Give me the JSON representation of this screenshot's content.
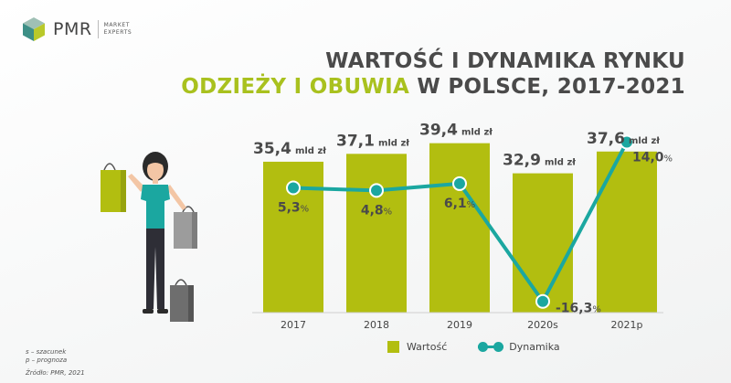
{
  "brand": {
    "name": "PMR",
    "tagline_line1": "MARKET",
    "tagline_line2": "EXPERTS"
  },
  "title": {
    "line1": "WARTOŚĆ I DYNAMIKA RYNKU",
    "line2_highlight": "ODZIEŻY I OBUWIA",
    "line2_rest": " W POLSCE, 2017-2021"
  },
  "notes": {
    "estimate": "s – szacunek",
    "forecast": "p – prognoza",
    "source": "Źródło: PMR, 2021"
  },
  "legend": {
    "bars": "Wartość",
    "line": "Dynamika"
  },
  "colors": {
    "bar": "#b2be10",
    "line": "#1ba7a0",
    "highlight": "#a9c11e",
    "text": "#4a4a4a"
  },
  "chart_data": {
    "type": "bar",
    "title": "WARTOŚĆ I DYNAMIKA RYNKU ODZIEŻY I OBUWIA W POLSCE, 2017-2021",
    "categories": [
      "2017",
      "2018",
      "2019",
      "2020s",
      "2021p"
    ],
    "series": [
      {
        "name": "Wartość",
        "type": "bar",
        "values": [
          35.4,
          37.1,
          39.4,
          32.9,
          37.6
        ],
        "labels": [
          "35,4",
          "37,1",
          "39,4",
          "32,9",
          "37,6"
        ],
        "unit": "mld zł"
      },
      {
        "name": "Dynamika",
        "type": "line",
        "values": [
          5.3,
          4.8,
          6.1,
          -16.3,
          14.0
        ],
        "labels": [
          "5,3",
          "4,8",
          "6,1",
          "-16,3",
          "14,0"
        ],
        "unit": "%"
      }
    ],
    "grid": false,
    "legend_position": "bottom-center"
  }
}
